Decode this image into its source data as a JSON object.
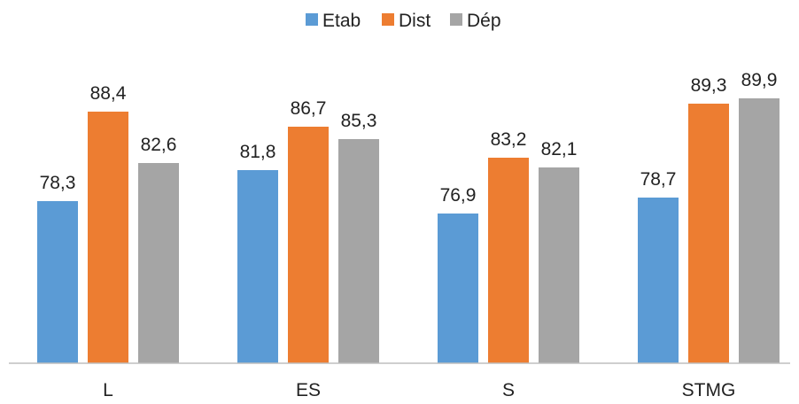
{
  "chart_data": {
    "type": "bar",
    "title": "",
    "xlabel": "",
    "ylabel": "",
    "categories": [
      "L",
      "ES",
      "S",
      "STMG"
    ],
    "series": [
      {
        "name": "Etab",
        "color": "#5B9BD5",
        "values": [
          78.3,
          81.8,
          76.9,
          78.7
        ],
        "labels": [
          "78,3",
          "81,8",
          "76,9",
          "78,7"
        ]
      },
      {
        "name": "Dist",
        "color": "#ED7D31",
        "values": [
          88.4,
          86.7,
          83.2,
          89.3
        ],
        "labels": [
          "88,4",
          "86,7",
          "83,2",
          "89,3"
        ]
      },
      {
        "name": "Dép",
        "color": "#A5A5A5",
        "values": [
          82.6,
          85.3,
          82.1,
          89.9
        ],
        "labels": [
          "82,6",
          "85,3",
          "82,1",
          "89,9"
        ]
      }
    ],
    "ylim": [
      60,
      92
    ],
    "grid": false,
    "legend_position": "top-center",
    "axis_color": "#BFBFBF"
  }
}
